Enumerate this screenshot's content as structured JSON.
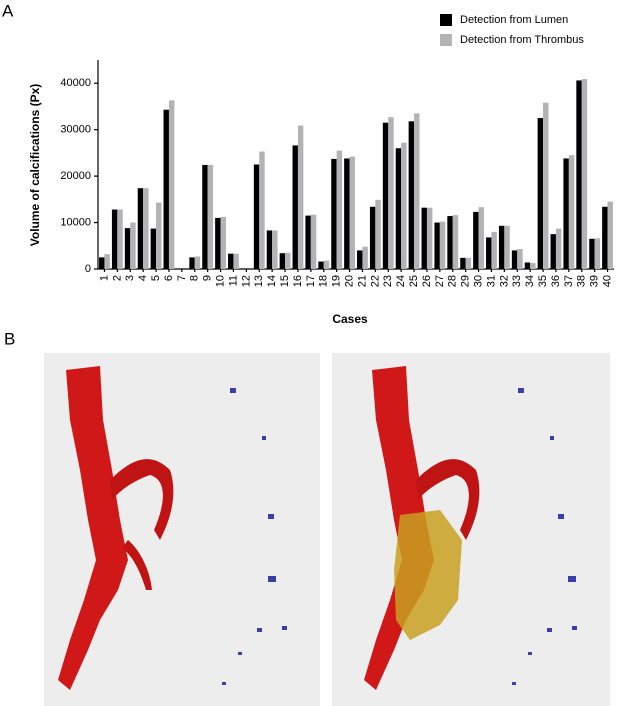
{
  "panels": [
    "A",
    "B"
  ],
  "chart_data": {
    "type": "bar",
    "y_label": "Volume of calcifications (Px)",
    "x_label": "Cases",
    "categories": [
      "1",
      "2",
      "3",
      "4",
      "5",
      "6",
      "7",
      "8",
      "9",
      "10",
      "11",
      "12",
      "13",
      "14",
      "15",
      "16",
      "17",
      "18",
      "19",
      "20",
      "21",
      "22",
      "23",
      "24",
      "25",
      "26",
      "27",
      "28",
      "29",
      "30",
      "31",
      "32",
      "33",
      "34",
      "35",
      "36",
      "37",
      "38",
      "39",
      "40"
    ],
    "series": [
      {
        "name": "Detection from Lumen",
        "color": "#000000",
        "values": [
          2500,
          12800,
          8800,
          17400,
          8700,
          34300,
          0,
          2500,
          22400,
          11000,
          3300,
          0,
          22500,
          8300,
          3400,
          26600,
          11500,
          1600,
          23700,
          23800,
          4000,
          13400,
          31500,
          26000,
          31800,
          13200,
          10000,
          11400,
          2400,
          12300,
          6800,
          9300,
          4000,
          1400,
          32500,
          7500,
          23800,
          40600,
          6500,
          13400
        ]
      },
      {
        "name": "Detection from Thrombus",
        "color": "#b3b3b5",
        "values": [
          3200,
          12800,
          10000,
          17400,
          14300,
          36300,
          0,
          2700,
          22400,
          11200,
          3300,
          0,
          25300,
          8300,
          3500,
          30900,
          11700,
          1800,
          25500,
          24200,
          4800,
          14900,
          32700,
          27200,
          33500,
          13200,
          10200,
          11600,
          2400,
          13300,
          8000,
          9300,
          4300,
          1300,
          35800,
          8700,
          24500,
          40900,
          6600,
          14500
        ]
      }
    ],
    "ylim": [
      0,
      45000
    ],
    "yticks": [
      0,
      10000,
      20000,
      30000,
      40000
    ],
    "legend": "top-right"
  }
}
